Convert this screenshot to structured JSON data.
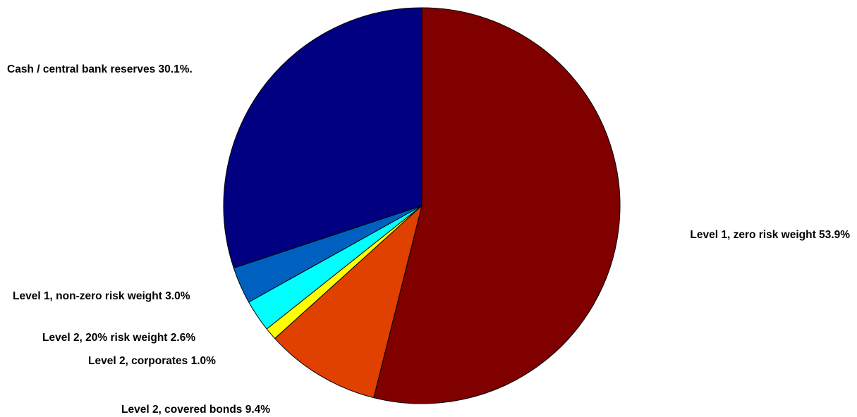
{
  "chart_data": {
    "type": "pie",
    "title": "",
    "slices": [
      {
        "label": "Level 1, zero risk weight 53.9%",
        "value": 53.9,
        "color": "#800000"
      },
      {
        "label": "Level 2, covered bonds 9.4%",
        "value": 9.4,
        "color": "#e04000"
      },
      {
        "label": "Level 2, corporates 1.0%",
        "value": 1.0,
        "color": "#ffff00"
      },
      {
        "label": "Level 2, 20% risk weight 2.6%",
        "value": 2.6,
        "color": "#00ffff"
      },
      {
        "label": "Level 1, non-zero risk weight 3.0%",
        "value": 3.0,
        "color": "#0060c0"
      },
      {
        "label": "Cash / central bank reserves 30.1%.",
        "value": 30.1,
        "color": "#000080"
      }
    ],
    "direction": "clockwise",
    "start": "top"
  }
}
